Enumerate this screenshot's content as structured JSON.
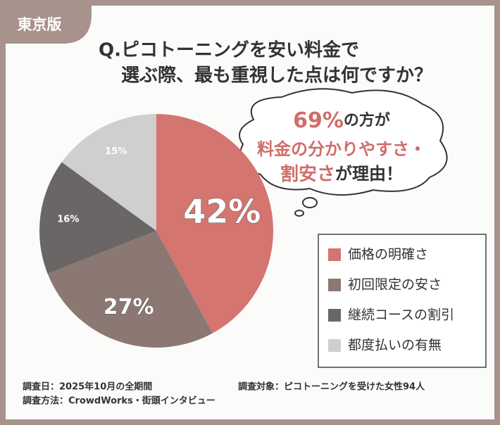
{
  "badge": "東京版",
  "chart_data": {
    "type": "pie",
    "title": [
      "Q.ピコトーニングを安い料金で",
      "選ぶ際、最も重視した点は何ですか？"
    ],
    "categories": [
      "価格の明確さ",
      "初回限定の安さ",
      "継続コースの割引",
      "都度払いの有無"
    ],
    "values": [
      42,
      27,
      16,
      15
    ],
    "value_labels": [
      "42%",
      "27%",
      "16%",
      "15%"
    ],
    "colors": [
      "#d4756f",
      "#8b7873",
      "#6b6666",
      "#cfcfcf"
    ],
    "annotation": [
      [
        {
          "text": "69%",
          "color": "#cf6e6a"
        },
        {
          "text": "の方が",
          "color": "#333333"
        }
      ],
      [
        {
          "text": "料金の分かりやすさ・",
          "color": "#cf6e6a"
        }
      ],
      [
        {
          "text": "割安さ",
          "color": "#cf6e6a"
        },
        {
          "text": "が理由！",
          "color": "#333333"
        }
      ]
    ]
  },
  "notes": [
    "調査日：2025年10月の全期間",
    "調査方法：CrowdWorks・街頭インタビュー",
    "調査対象：ピコトーニングを受けた女性94人"
  ]
}
